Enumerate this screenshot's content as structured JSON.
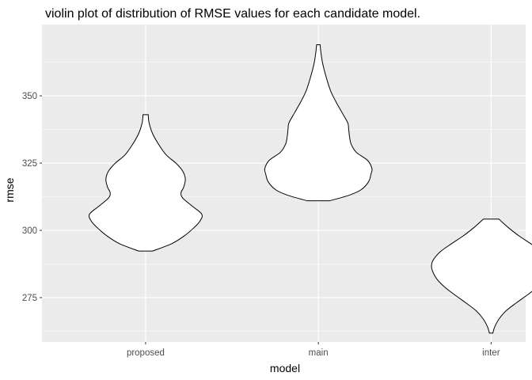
{
  "chart_data": {
    "type": "violin",
    "title": "violin plot of distribution of RMSE values for each candidate model.",
    "xlabel": "model",
    "ylabel": "rmse",
    "categories": [
      "proposed",
      "main",
      "inter"
    ],
    "yticks": [
      275,
      300,
      325,
      350
    ],
    "ylim": [
      258.5,
      376.5
    ],
    "grid": true,
    "fill_color": "#ffffff",
    "outline_color": "#000000",
    "panel_color": "#ebebeb",
    "series": [
      {
        "category": "proposed",
        "density_profile": [
          {
            "y": 292.3,
            "half_width": 0.08
          },
          {
            "y": 295,
            "half_width": 0.3
          },
          {
            "y": 298,
            "half_width": 0.45
          },
          {
            "y": 301,
            "half_width": 0.56
          },
          {
            "y": 303.5,
            "half_width": 0.63
          },
          {
            "y": 306,
            "half_width": 0.65
          },
          {
            "y": 309,
            "half_width": 0.54
          },
          {
            "y": 312,
            "half_width": 0.43
          },
          {
            "y": 314,
            "half_width": 0.41
          },
          {
            "y": 316,
            "half_width": 0.44
          },
          {
            "y": 319,
            "half_width": 0.46
          },
          {
            "y": 322,
            "half_width": 0.43
          },
          {
            "y": 325,
            "half_width": 0.35
          },
          {
            "y": 328,
            "half_width": 0.24
          },
          {
            "y": 332,
            "half_width": 0.15
          },
          {
            "y": 336,
            "half_width": 0.08
          },
          {
            "y": 340,
            "half_width": 0.04
          },
          {
            "y": 343,
            "half_width": 0.03
          }
        ]
      },
      {
        "category": "main",
        "density_profile": [
          {
            "y": 311,
            "half_width": 0.13
          },
          {
            "y": 313,
            "half_width": 0.35
          },
          {
            "y": 315,
            "half_width": 0.49
          },
          {
            "y": 318,
            "half_width": 0.58
          },
          {
            "y": 321,
            "half_width": 0.61
          },
          {
            "y": 323,
            "half_width": 0.62
          },
          {
            "y": 326,
            "half_width": 0.57
          },
          {
            "y": 329,
            "half_width": 0.44
          },
          {
            "y": 332,
            "half_width": 0.38
          },
          {
            "y": 335,
            "half_width": 0.36
          },
          {
            "y": 338,
            "half_width": 0.35
          },
          {
            "y": 340,
            "half_width": 0.34
          },
          {
            "y": 344,
            "half_width": 0.27
          },
          {
            "y": 348,
            "half_width": 0.2
          },
          {
            "y": 352,
            "half_width": 0.14
          },
          {
            "y": 357,
            "half_width": 0.09
          },
          {
            "y": 362,
            "half_width": 0.05
          },
          {
            "y": 366,
            "half_width": 0.03
          },
          {
            "y": 369,
            "half_width": 0.02
          }
        ]
      },
      {
        "category": "inter",
        "density_profile": [
          {
            "y": 261.8,
            "half_width": 0.02
          },
          {
            "y": 264,
            "half_width": 0.04
          },
          {
            "y": 267,
            "half_width": 0.09
          },
          {
            "y": 270,
            "half_width": 0.17
          },
          {
            "y": 273,
            "half_width": 0.29
          },
          {
            "y": 276,
            "half_width": 0.42
          },
          {
            "y": 279,
            "half_width": 0.54
          },
          {
            "y": 282,
            "half_width": 0.63
          },
          {
            "y": 285,
            "half_width": 0.68
          },
          {
            "y": 287,
            "half_width": 0.69
          },
          {
            "y": 289,
            "half_width": 0.67
          },
          {
            "y": 292,
            "half_width": 0.59
          },
          {
            "y": 295,
            "half_width": 0.46
          },
          {
            "y": 298,
            "half_width": 0.32
          },
          {
            "y": 301,
            "half_width": 0.2
          },
          {
            "y": 303,
            "half_width": 0.13
          },
          {
            "y": 304.2,
            "half_width": 0.09
          }
        ]
      }
    ]
  }
}
